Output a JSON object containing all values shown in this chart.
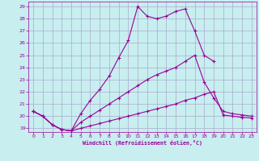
{
  "xlabel": "Windchill (Refroidissement éolien,°C)",
  "background_color": "#c8eef0",
  "line_color": "#990099",
  "grid_color": "#aaaacc",
  "xlim_min": -0.5,
  "xlim_max": 23.5,
  "ylim_min": 18.7,
  "ylim_max": 29.4,
  "yticks": [
    19,
    20,
    21,
    22,
    23,
    24,
    25,
    26,
    27,
    28,
    29
  ],
  "xticks": [
    0,
    1,
    2,
    3,
    4,
    5,
    6,
    7,
    8,
    9,
    10,
    11,
    12,
    13,
    14,
    15,
    16,
    17,
    18,
    19,
    20,
    21,
    22,
    23
  ],
  "line1_x": [
    0,
    1,
    2,
    3,
    4,
    5,
    6,
    7,
    8,
    9,
    10,
    11,
    12,
    13,
    14,
    15,
    16,
    17,
    18,
    19
  ],
  "line1_y": [
    20.4,
    20.0,
    19.3,
    18.9,
    18.8,
    20.2,
    21.3,
    22.2,
    23.3,
    24.8,
    26.2,
    29.0,
    28.2,
    28.0,
    28.2,
    28.6,
    28.8,
    27.0,
    25.0,
    24.5
  ],
  "line2_x": [
    0,
    1,
    2,
    3,
    4,
    5,
    6,
    7,
    8,
    9,
    10,
    11,
    12,
    13,
    14,
    15,
    16,
    17,
    18,
    19,
    20,
    21,
    22,
    23
  ],
  "line2_y": [
    20.4,
    20.0,
    19.3,
    18.9,
    18.8,
    19.5,
    20.0,
    20.5,
    21.0,
    21.5,
    22.0,
    22.5,
    23.0,
    23.4,
    23.7,
    24.0,
    24.5,
    25.0,
    22.8,
    21.5,
    20.4,
    20.2,
    20.1,
    20.0
  ],
  "line3_x": [
    0,
    1,
    2,
    3,
    4,
    5,
    6,
    7,
    8,
    9,
    10,
    11,
    12,
    13,
    14,
    15,
    16,
    17,
    18,
    19,
    20,
    21,
    22,
    23
  ],
  "line3_y": [
    20.4,
    20.0,
    19.3,
    18.9,
    18.8,
    19.0,
    19.2,
    19.4,
    19.6,
    19.8,
    20.0,
    20.2,
    20.4,
    20.6,
    20.8,
    21.0,
    21.3,
    21.5,
    21.8,
    22.0,
    20.1,
    20.0,
    19.9,
    19.85
  ]
}
